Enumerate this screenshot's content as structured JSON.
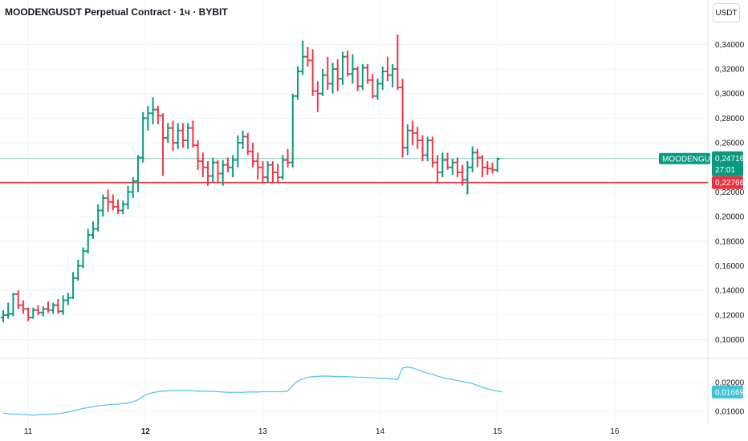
{
  "header": {
    "title": "MOODENGUSDT Perpetual Contract · 1ч · BYBIT",
    "currency": "USDT"
  },
  "colors": {
    "up": "#089981",
    "down": "#f23645",
    "indicator": "#5ac8e6",
    "hline": "#e8323f",
    "current_line": "#8ecdc2",
    "grid": "#f0f3fa"
  },
  "chart_data": {
    "type": "candlestick-ohlc",
    "y_axis": {
      "ticks": [
        "0,34000",
        "0,32000",
        "0,30000",
        "0,28000",
        "0,26000",
        "0,22000",
        "0,20000",
        "0,18000",
        "0,16000",
        "0,14000",
        "0,12000",
        "0,10000"
      ],
      "tick_values": [
        0.34,
        0.32,
        0.3,
        0.28,
        0.26,
        0.22,
        0.2,
        0.18,
        0.16,
        0.14,
        0.12,
        0.1
      ],
      "range": [
        0.088,
        0.35
      ]
    },
    "x_axis": {
      "ticks": [
        "11",
        "12",
        "13",
        "14",
        "15",
        "16"
      ],
      "bar_positions": [
        5,
        28.5,
        52,
        75.5,
        99,
        122.5
      ],
      "bold": [
        false,
        true,
        false,
        false,
        false,
        false
      ]
    },
    "horizontal_line": {
      "value": 0.22766,
      "label": "0,22766"
    },
    "current_price": {
      "symbol": "MOODENGUSDT.P",
      "value": 0.24716,
      "label": "0,24716",
      "countdown": "27:01"
    },
    "ohlc": [
      [
        0.118,
        0.124,
        0.114,
        0.12
      ],
      [
        0.12,
        0.13,
        0.117,
        0.121
      ],
      [
        0.121,
        0.138,
        0.119,
        0.137
      ],
      [
        0.137,
        0.14,
        0.125,
        0.128
      ],
      [
        0.128,
        0.132,
        0.121,
        0.125
      ],
      [
        0.125,
        0.126,
        0.115,
        0.118
      ],
      [
        0.118,
        0.126,
        0.117,
        0.124
      ],
      [
        0.124,
        0.128,
        0.12,
        0.122
      ],
      [
        0.122,
        0.127,
        0.119,
        0.125
      ],
      [
        0.125,
        0.131,
        0.122,
        0.124
      ],
      [
        0.124,
        0.13,
        0.121,
        0.128
      ],
      [
        0.128,
        0.133,
        0.121,
        0.123
      ],
      [
        0.123,
        0.136,
        0.12,
        0.132
      ],
      [
        0.132,
        0.138,
        0.128,
        0.134
      ],
      [
        0.134,
        0.155,
        0.133,
        0.15
      ],
      [
        0.15,
        0.165,
        0.148,
        0.16
      ],
      [
        0.16,
        0.175,
        0.158,
        0.172
      ],
      [
        0.172,
        0.19,
        0.17,
        0.185
      ],
      [
        0.185,
        0.196,
        0.182,
        0.19
      ],
      [
        0.19,
        0.21,
        0.188,
        0.205
      ],
      [
        0.205,
        0.218,
        0.2,
        0.215
      ],
      [
        0.215,
        0.222,
        0.204,
        0.212
      ],
      [
        0.212,
        0.218,
        0.205,
        0.208
      ],
      [
        0.208,
        0.214,
        0.202,
        0.205
      ],
      [
        0.205,
        0.213,
        0.202,
        0.21
      ],
      [
        0.21,
        0.225,
        0.206,
        0.22
      ],
      [
        0.22,
        0.232,
        0.215,
        0.229
      ],
      [
        0.229,
        0.25,
        0.22,
        0.248
      ],
      [
        0.248,
        0.285,
        0.244,
        0.28
      ],
      [
        0.28,
        0.29,
        0.27,
        0.284
      ],
      [
        0.284,
        0.297,
        0.275,
        0.287
      ],
      [
        0.287,
        0.29,
        0.275,
        0.282
      ],
      [
        0.282,
        0.284,
        0.233,
        0.264
      ],
      [
        0.264,
        0.276,
        0.26,
        0.272
      ],
      [
        0.272,
        0.278,
        0.253,
        0.26
      ],
      [
        0.26,
        0.276,
        0.255,
        0.27
      ],
      [
        0.27,
        0.276,
        0.256,
        0.262
      ],
      [
        0.262,
        0.276,
        0.255,
        0.272
      ],
      [
        0.272,
        0.278,
        0.256,
        0.258
      ],
      [
        0.258,
        0.262,
        0.238,
        0.245
      ],
      [
        0.245,
        0.252,
        0.232,
        0.24
      ],
      [
        0.24,
        0.245,
        0.225,
        0.233
      ],
      [
        0.233,
        0.248,
        0.228,
        0.244
      ],
      [
        0.244,
        0.246,
        0.228,
        0.235
      ],
      [
        0.235,
        0.246,
        0.225,
        0.242
      ],
      [
        0.242,
        0.248,
        0.236,
        0.24
      ],
      [
        0.24,
        0.25,
        0.232,
        0.246
      ],
      [
        0.246,
        0.266,
        0.24,
        0.26
      ],
      [
        0.26,
        0.27,
        0.255,
        0.265
      ],
      [
        0.265,
        0.268,
        0.25,
        0.253
      ],
      [
        0.253,
        0.26,
        0.24,
        0.245
      ],
      [
        0.245,
        0.252,
        0.23,
        0.24
      ],
      [
        0.24,
        0.245,
        0.228,
        0.232
      ],
      [
        0.232,
        0.245,
        0.228,
        0.242
      ],
      [
        0.242,
        0.245,
        0.228,
        0.236
      ],
      [
        0.236,
        0.243,
        0.228,
        0.232
      ],
      [
        0.232,
        0.25,
        0.23,
        0.246
      ],
      [
        0.246,
        0.255,
        0.24,
        0.244
      ],
      [
        0.244,
        0.3,
        0.24,
        0.298
      ],
      [
        0.298,
        0.322,
        0.295,
        0.318
      ],
      [
        0.318,
        0.343,
        0.315,
        0.33
      ],
      [
        0.33,
        0.338,
        0.322,
        0.327
      ],
      [
        0.327,
        0.336,
        0.298,
        0.302
      ],
      [
        0.302,
        0.31,
        0.285,
        0.3
      ],
      [
        0.3,
        0.32,
        0.298,
        0.315
      ],
      [
        0.315,
        0.33,
        0.303,
        0.308
      ],
      [
        0.308,
        0.325,
        0.3,
        0.32
      ],
      [
        0.32,
        0.328,
        0.302,
        0.312
      ],
      [
        0.312,
        0.334,
        0.307,
        0.33
      ],
      [
        0.33,
        0.335,
        0.314,
        0.316
      ],
      [
        0.316,
        0.332,
        0.308,
        0.32
      ],
      [
        0.32,
        0.322,
        0.302,
        0.306
      ],
      [
        0.306,
        0.324,
        0.303,
        0.321
      ],
      [
        0.321,
        0.324,
        0.308,
        0.311
      ],
      [
        0.311,
        0.316,
        0.296,
        0.298
      ],
      [
        0.298,
        0.312,
        0.295,
        0.308
      ],
      [
        0.308,
        0.322,
        0.303,
        0.318
      ],
      [
        0.318,
        0.33,
        0.31,
        0.315
      ],
      [
        0.315,
        0.324,
        0.305,
        0.32
      ],
      [
        0.32,
        0.348,
        0.303,
        0.305
      ],
      [
        0.305,
        0.312,
        0.248,
        0.256
      ],
      [
        0.256,
        0.275,
        0.25,
        0.27
      ],
      [
        0.27,
        0.278,
        0.258,
        0.268
      ],
      [
        0.268,
        0.273,
        0.255,
        0.262
      ],
      [
        0.262,
        0.266,
        0.245,
        0.25
      ],
      [
        0.25,
        0.265,
        0.245,
        0.262
      ],
      [
        0.262,
        0.265,
        0.24,
        0.244
      ],
      [
        0.244,
        0.25,
        0.228,
        0.236
      ],
      [
        0.236,
        0.252,
        0.232,
        0.246
      ],
      [
        0.246,
        0.252,
        0.238,
        0.24
      ],
      [
        0.24,
        0.247,
        0.234,
        0.244
      ],
      [
        0.244,
        0.248,
        0.232,
        0.236
      ],
      [
        0.236,
        0.242,
        0.225,
        0.23
      ],
      [
        0.23,
        0.245,
        0.218,
        0.24
      ],
      [
        0.24,
        0.257,
        0.236,
        0.252
      ],
      [
        0.252,
        0.255,
        0.24,
        0.248
      ],
      [
        0.248,
        0.25,
        0.232,
        0.24
      ],
      [
        0.24,
        0.245,
        0.234,
        0.239
      ],
      [
        0.239,
        0.244,
        0.235,
        0.238
      ],
      [
        0.238,
        0.248,
        0.236,
        0.247
      ]
    ],
    "indicator": {
      "ticks": [
        "0,02000",
        "0,01000"
      ],
      "tick_values": [
        0.02,
        0.01
      ],
      "range": [
        0.0075,
        0.0275
      ],
      "current_label": "0,01669",
      "values": [
        0.0094,
        0.0092,
        0.009,
        0.0091,
        0.0089,
        0.0088,
        0.0087,
        0.0088,
        0.0089,
        0.009,
        0.0091,
        0.0092,
        0.0094,
        0.0098,
        0.0102,
        0.0106,
        0.011,
        0.0113,
        0.0116,
        0.0119,
        0.0121,
        0.0123,
        0.0124,
        0.0125,
        0.0127,
        0.0129,
        0.0133,
        0.014,
        0.0152,
        0.016,
        0.0165,
        0.0168,
        0.017,
        0.0171,
        0.0172,
        0.0172,
        0.0172,
        0.0172,
        0.0171,
        0.017,
        0.017,
        0.0169,
        0.0169,
        0.0168,
        0.0167,
        0.0166,
        0.0166,
        0.0166,
        0.0166,
        0.0167,
        0.0167,
        0.0167,
        0.0168,
        0.0168,
        0.0168,
        0.0168,
        0.0168,
        0.017,
        0.019,
        0.0205,
        0.0212,
        0.0218,
        0.022,
        0.0221,
        0.0222,
        0.0222,
        0.0221,
        0.0221,
        0.022,
        0.022,
        0.0219,
        0.0218,
        0.0218,
        0.0217,
        0.0216,
        0.0215,
        0.0214,
        0.0213,
        0.0212,
        0.021,
        0.025,
        0.0254,
        0.025,
        0.0245,
        0.0238,
        0.0232,
        0.0228,
        0.0222,
        0.0217,
        0.0213,
        0.021,
        0.0207,
        0.0203,
        0.02,
        0.0196,
        0.019,
        0.0183,
        0.0178,
        0.0174,
        0.017,
        0.0167
      ]
    }
  }
}
